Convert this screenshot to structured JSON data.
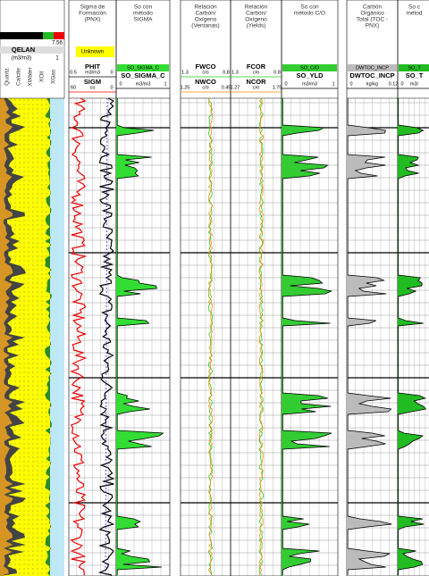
{
  "lithology": {
    "top": "Unknown",
    "curve": "QELAN",
    "unit": "(m3/m3)",
    "max": "1",
    "scale": "7.56",
    "components": [
      "Quartz",
      "Calcite",
      "XWater",
      "XOil",
      "XGas"
    ]
  },
  "tracks": [
    {
      "title": [
        "Sigma de",
        "Formación",
        "(PNX)"
      ],
      "box": "Unknown",
      "curves": [
        {
          "name": "PHIT",
          "scale": [
            "0.5",
            "m3/m3",
            "0"
          ]
        },
        {
          "name": "SIGM",
          "scale": [
            "60",
            "cu",
            "0"
          ]
        }
      ]
    },
    {
      "title": [
        "So con",
        "método",
        "SIGMA"
      ],
      "fill": "SO_SIGMA_C",
      "curves": [
        {
          "name": "SO_SIGMA_C",
          "scale": [
            "0",
            "m3/m3",
            "1"
          ]
        }
      ]
    },
    {
      "title": [
        "Relación",
        "Carbón/",
        "Oxígeno",
        "(Ventanas)"
      ],
      "curves": [
        {
          "name": "FWCO",
          "scale": [
            "1.3",
            "c/o",
            "0.8"
          ]
        },
        {
          "name": "NWCO",
          "scale": [
            "1.25",
            "c/o",
            "0.45"
          ]
        }
      ]
    },
    {
      "title": [
        "Relación",
        "Carbón/",
        "Oxígeno",
        "(Yields)"
      ],
      "curves": [
        {
          "name": "FCOR",
          "scale": [
            "1.3",
            "c/o",
            "0.8"
          ]
        },
        {
          "name": "NCOR",
          "scale": [
            "1.27",
            "c/o",
            "1.75"
          ]
        }
      ]
    },
    {
      "title": [
        "So con",
        "método C/O"
      ],
      "fill": "SO_C/O",
      "curves": [
        {
          "name": "SO_YLD",
          "scale": [
            "0",
            "m3/m3",
            "1"
          ]
        }
      ]
    },
    {
      "title": [
        "Carbón",
        "Orgánico",
        "Total (TOC -",
        "PNX)"
      ],
      "fill": "DWTOC_INCP",
      "curves": [
        {
          "name": "DWTOC_INCP",
          "scale": [
            "0",
            "kg/kg",
            "0.12"
          ]
        }
      ]
    },
    {
      "title": [
        "So c",
        "métod"
      ],
      "fill": "SO_T",
      "curves": [
        {
          "name": "SO_T",
          "scale": [
            "0",
            "m3/",
            ""
          ]
        }
      ]
    }
  ]
}
